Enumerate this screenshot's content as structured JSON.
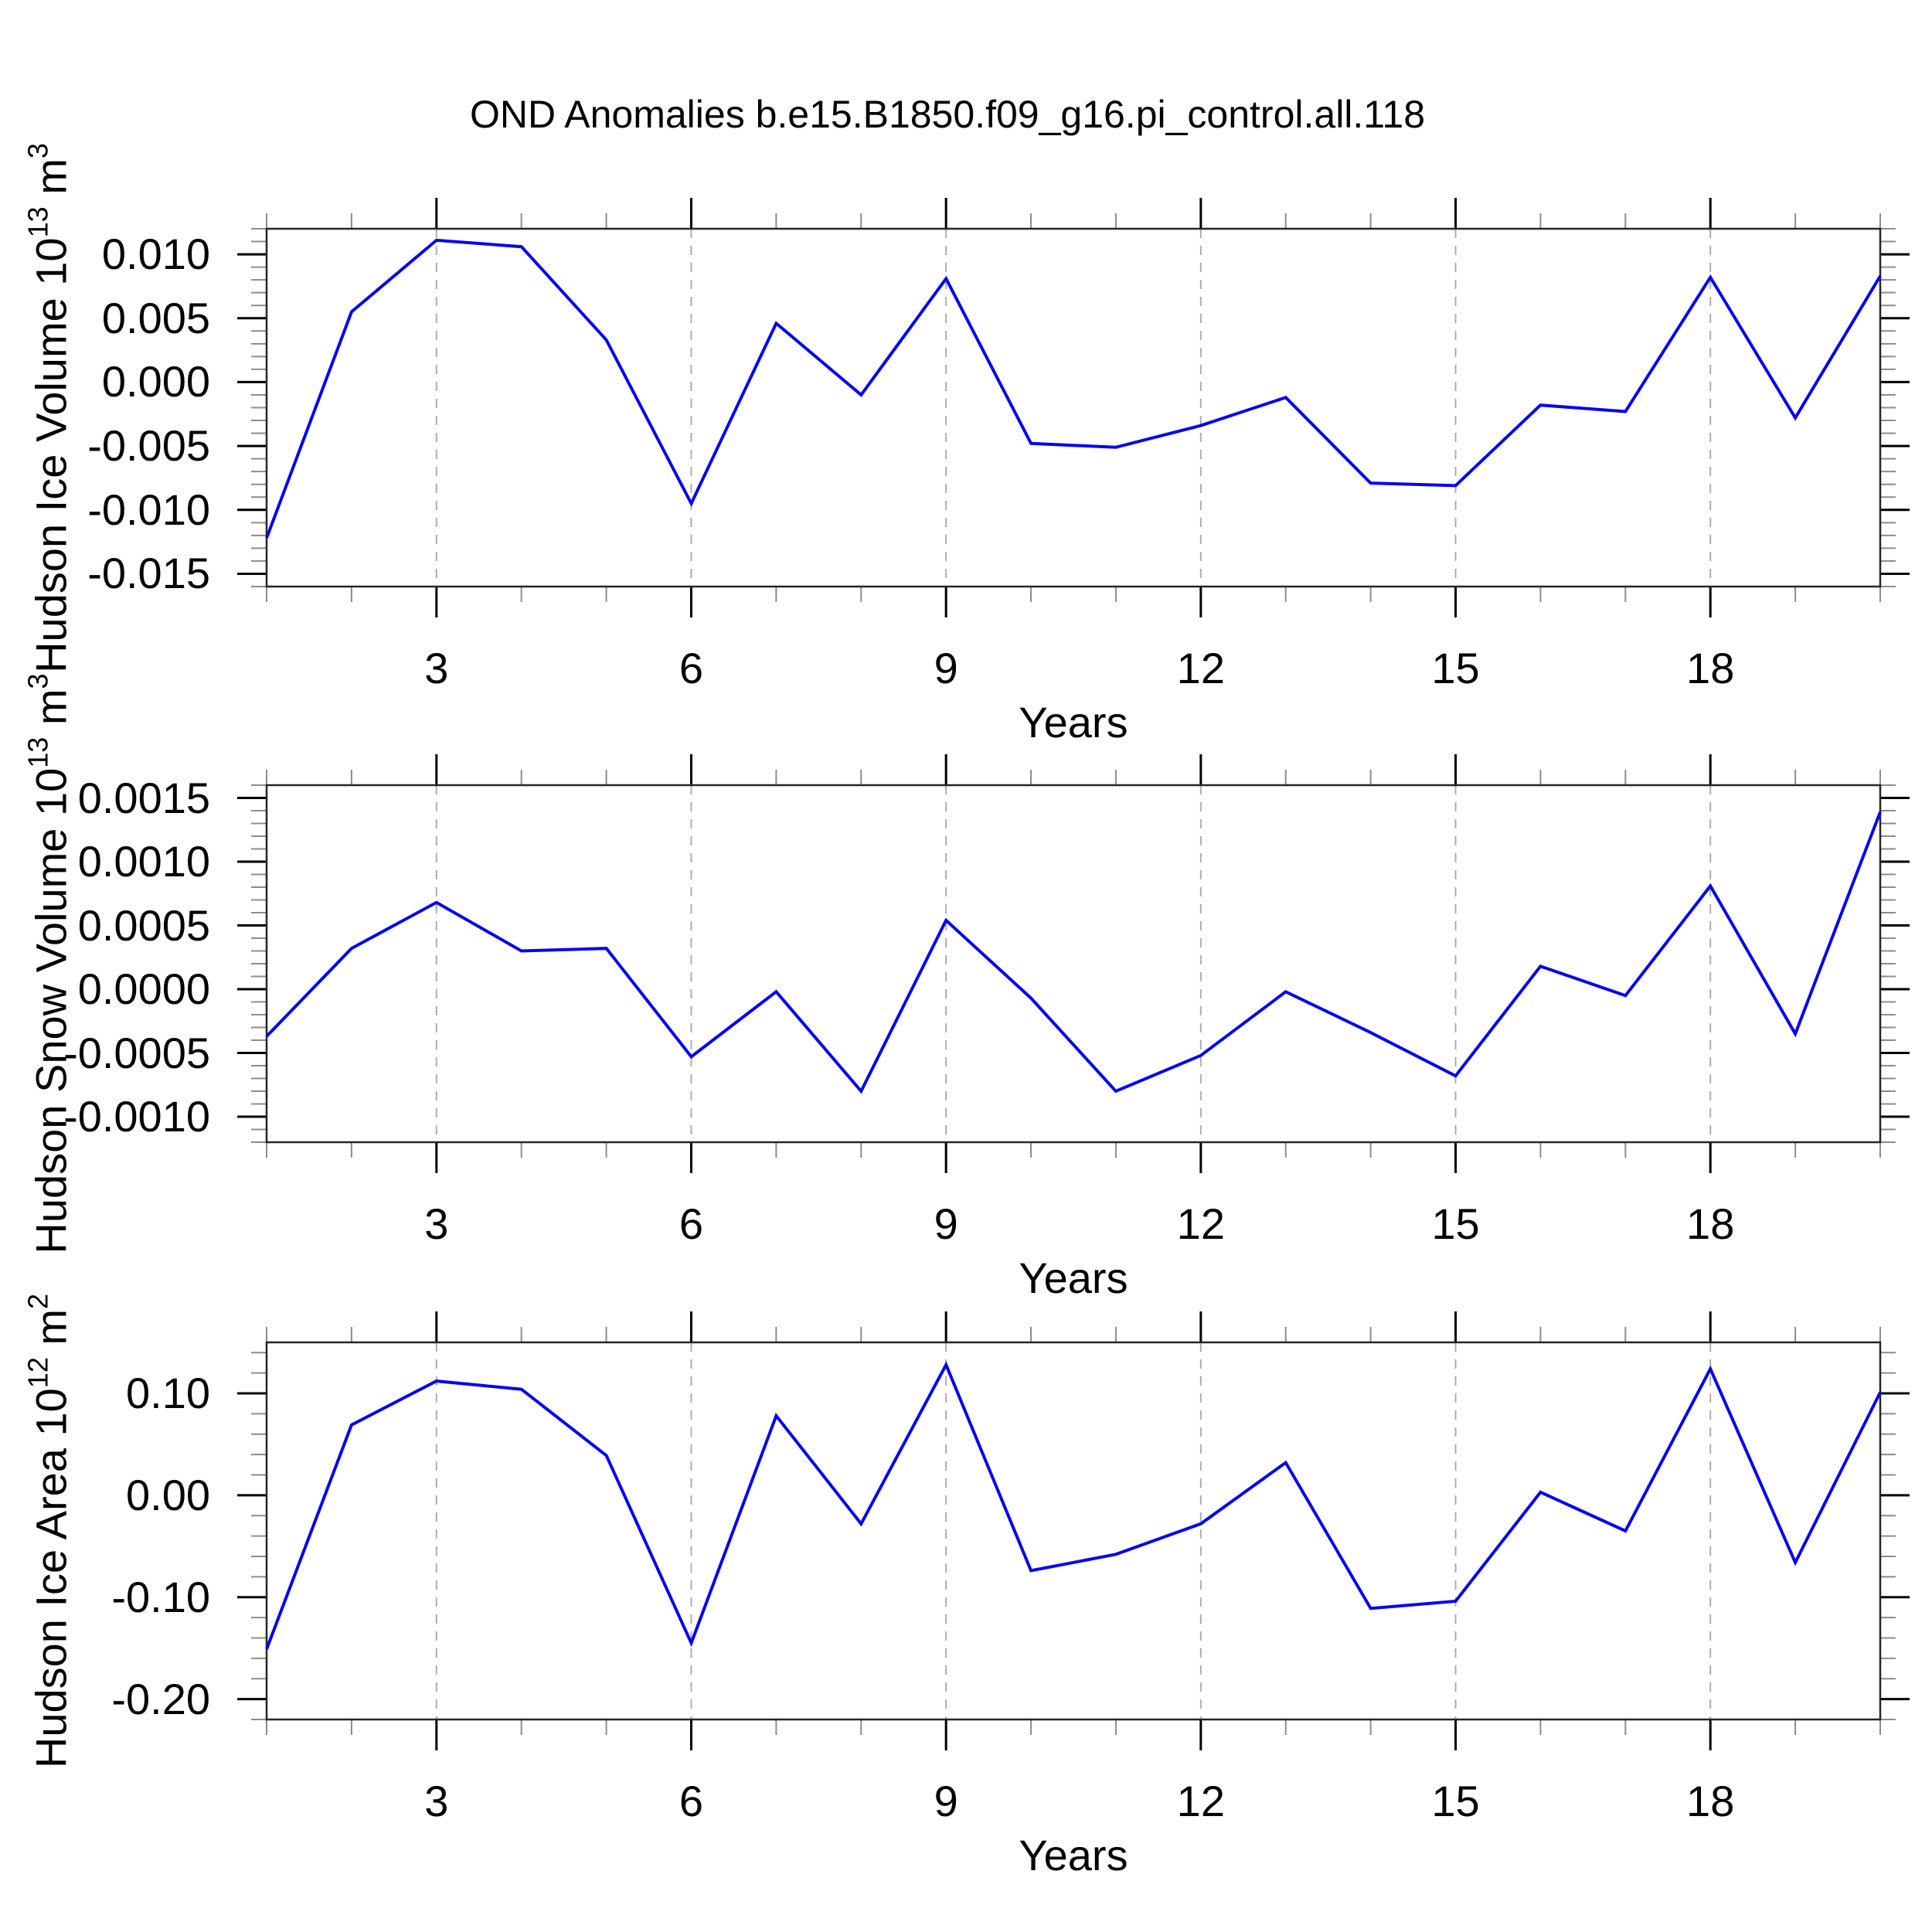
{
  "figure_title": "OND Anomalies b.e15.B1850.f09_g16.pi_control.all.118",
  "colors": {
    "line": "#0505F0",
    "grid_dashed": "#ADADAD",
    "frame": "#262626",
    "major_tick": "#000000",
    "minor_tick": "#8C8C8C",
    "background": "#FFFFFF",
    "text": "#000000"
  },
  "chart_data": [
    {
      "type": "line",
      "series_name": "Hudson Ice Volume",
      "ylabel": "Hudson Ice Volume 10^13 m^3",
      "ylabel_prefix": "Hudson Ice Volume 10",
      "ylabel_exp": "13",
      "ylabel_mid": " m",
      "ylabel_unit_exp": "3",
      "xlabel": "Years",
      "x": [
        1,
        2,
        3,
        4,
        5,
        6,
        7,
        8,
        9,
        10,
        11,
        12,
        13,
        14,
        15,
        16,
        17,
        18,
        19,
        20
      ],
      "values": [
        -0.0122,
        0.0055,
        0.0111,
        0.0106,
        0.0033,
        -0.0095,
        0.0046,
        -0.001,
        0.0081,
        -0.0048,
        -0.0051,
        -0.0034,
        -0.0012,
        -0.0079,
        -0.0081,
        -0.0018,
        -0.0023,
        0.0082,
        -0.0028,
        0.0083
      ],
      "ylim": [
        -0.016,
        0.012
      ],
      "xlim": [
        1,
        20
      ],
      "ytick_values": [
        0.01,
        0.005,
        0.0,
        -0.005,
        -0.01,
        -0.015
      ],
      "ytick_labels": [
        "0.010",
        "0.005",
        "0.000",
        "-0.005",
        "-0.010",
        "-0.015"
      ],
      "yminor_step": 0.001,
      "xtick_major": [
        3,
        6,
        9,
        12,
        15,
        18
      ],
      "xtick_labels": [
        "3",
        "6",
        "9",
        "12",
        "15",
        "18"
      ],
      "grid": "vertical-dashed-at-major-x",
      "legend": "none"
    },
    {
      "type": "line",
      "series_name": "Hudson Snow Volume",
      "ylabel": "Hudson Snow Volume 10^13 m^3",
      "ylabel_prefix": "Hudson Snow Volume 10",
      "ylabel_exp": "13",
      "ylabel_mid": " m",
      "ylabel_unit_exp": "3",
      "xlabel": "Years",
      "x": [
        1,
        2,
        3,
        4,
        5,
        6,
        7,
        8,
        9,
        10,
        11,
        12,
        13,
        14,
        15,
        16,
        17,
        18,
        19,
        20
      ],
      "values": [
        -0.00037,
        0.00032,
        0.00068,
        0.0003,
        0.00032,
        -0.00053,
        -2e-05,
        -0.0008,
        0.00054,
        -7e-05,
        -0.0008,
        -0.00052,
        -2e-05,
        -0.00034,
        -0.00068,
        0.00018,
        -5e-05,
        0.00081,
        -0.00035,
        0.00139
      ],
      "ylim": [
        -0.0012,
        0.0016
      ],
      "xlim": [
        1,
        20
      ],
      "ytick_values": [
        0.0015,
        0.001,
        0.0005,
        0.0,
        -0.0005,
        -0.001
      ],
      "ytick_labels": [
        "0.0015",
        "0.0010",
        "0.0005",
        "0.0000",
        "-0.0005",
        "-0.0010"
      ],
      "yminor_step": 0.0001,
      "xtick_major": [
        3,
        6,
        9,
        12,
        15,
        18
      ],
      "xtick_labels": [
        "3",
        "6",
        "9",
        "12",
        "15",
        "18"
      ],
      "grid": "vertical-dashed-at-major-x",
      "legend": "none"
    },
    {
      "type": "line",
      "series_name": "Hudson Ice Area",
      "ylabel": "Hudson Ice Area 10^12 m^2",
      "ylabel_prefix": "Hudson Ice Area 10",
      "ylabel_exp": "12",
      "ylabel_mid": " m",
      "ylabel_unit_exp": "2",
      "xlabel": "Years",
      "x": [
        1,
        2,
        3,
        4,
        5,
        6,
        7,
        8,
        9,
        10,
        11,
        12,
        13,
        14,
        15,
        16,
        17,
        18,
        19,
        20
      ],
      "values": [
        -0.151,
        0.069,
        0.112,
        0.104,
        0.039,
        -0.145,
        0.078,
        -0.028,
        0.128,
        -0.074,
        -0.058,
        -0.028,
        0.032,
        -0.111,
        -0.104,
        0.003,
        -0.035,
        0.124,
        -0.066,
        0.101
      ],
      "ylim": [
        -0.22,
        0.15
      ],
      "xlim": [
        1,
        20
      ],
      "ytick_values": [
        0.1,
        0.0,
        -0.1,
        -0.2
      ],
      "ytick_labels": [
        "0.10",
        "0.00",
        "-0.10",
        "-0.20"
      ],
      "yminor_step": 0.02,
      "xtick_major": [
        3,
        6,
        9,
        12,
        15,
        18
      ],
      "xtick_labels": [
        "3",
        "6",
        "9",
        "12",
        "15",
        "18"
      ],
      "grid": "vertical-dashed-at-major-x",
      "legend": "none"
    }
  ]
}
